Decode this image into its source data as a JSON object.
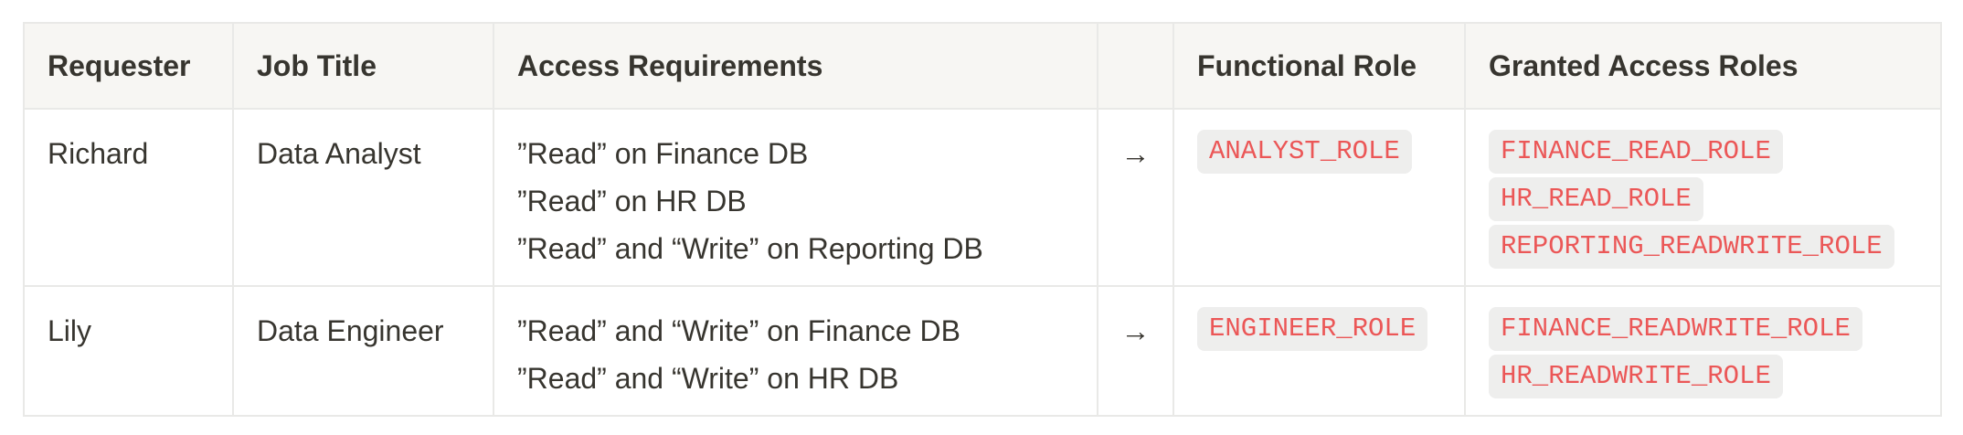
{
  "table": {
    "headers": [
      "Requester",
      "Job Title",
      "Access Requirements",
      "",
      "Functional Role",
      "Granted Access Roles"
    ],
    "rows": [
      {
        "requester": "Richard",
        "job_title": "Data Analyst",
        "requirements": [
          "”Read” on Finance DB",
          "”Read” on HR DB",
          "”Read” and “Write” on Reporting DB"
        ],
        "arrow": "→",
        "functional_role": "ANALYST_ROLE",
        "granted_roles": [
          "FINANCE_READ_ROLE",
          "HR_READ_ROLE",
          "REPORTING_READWRITE_ROLE"
        ]
      },
      {
        "requester": "Lily",
        "job_title": "Data Engineer",
        "requirements": [
          "”Read” and “Write” on Finance DB",
          "”Read” and “Write” on HR DB"
        ],
        "arrow": "→",
        "functional_role": "ENGINEER_ROLE",
        "granted_roles": [
          "FINANCE_READWRITE_ROLE",
          "HR_READWRITE_ROLE"
        ]
      }
    ]
  },
  "colors": {
    "code_text": "#eb5757",
    "code_bg": "#eeeeed",
    "header_bg": "#f7f6f3",
    "border": "#e9e9e7"
  }
}
